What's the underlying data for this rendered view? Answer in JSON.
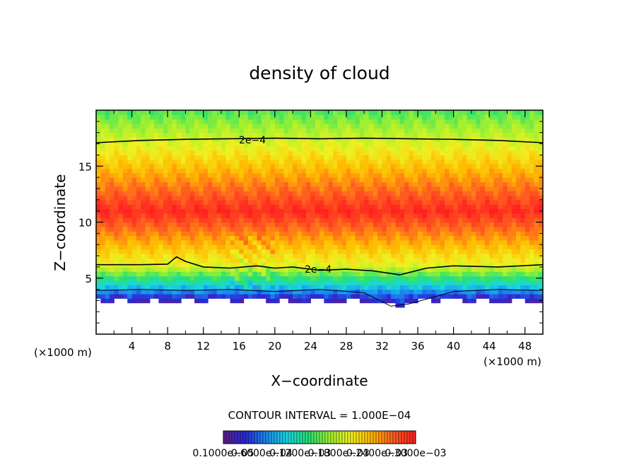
{
  "chart_data": {
    "type": "heatmap",
    "title": "density of cloud",
    "xlabel": "X−coordinate",
    "ylabel": "Z−coordinate",
    "x_unit": "(×1000 m)",
    "y_unit": "(×1000 m)",
    "xlim": [
      0,
      50
    ],
    "ylim": [
      0,
      20
    ],
    "x_ticks": [
      4,
      8,
      12,
      16,
      20,
      24,
      28,
      32,
      36,
      40,
      44,
      48
    ],
    "y_ticks": [
      5,
      10,
      15
    ],
    "colorscale": [
      "#5a1e8c",
      "#2a2ad8",
      "#1a8cf0",
      "#18d8e0",
      "#28e070",
      "#a0f030",
      "#f0f020",
      "#ffb800",
      "#ff6020",
      "#ff2020"
    ],
    "field_max": 0.00033,
    "contour_interval": "CONTOUR INTERVAL = 1.000E−04",
    "contour_labels": [
      {
        "text": "2e−4",
        "x": 16.3,
        "y": 17.3
      },
      {
        "text": "2e−4",
        "x": 24.1,
        "y": 5.8
      }
    ],
    "contours": [
      {
        "level": 0.0002,
        "points": [
          [
            0,
            17.1
          ],
          [
            5,
            17.3
          ],
          [
            10,
            17.4
          ],
          [
            15,
            17.45
          ],
          [
            20,
            17.5
          ],
          [
            25,
            17.45
          ],
          [
            30,
            17.5
          ],
          [
            35,
            17.45
          ],
          [
            40,
            17.4
          ],
          [
            45,
            17.3
          ],
          [
            50,
            17.1
          ]
        ]
      },
      {
        "level": 0.0002,
        "points": [
          [
            0,
            6.2
          ],
          [
            5,
            6.2
          ],
          [
            8,
            6.25
          ],
          [
            9,
            6.9
          ],
          [
            10,
            6.5
          ],
          [
            12,
            6.0
          ],
          [
            15,
            5.9
          ],
          [
            18,
            6.1
          ],
          [
            20,
            5.9
          ],
          [
            22,
            6.0
          ],
          [
            25,
            5.7
          ],
          [
            28,
            5.8
          ],
          [
            31,
            5.65
          ],
          [
            34,
            5.3
          ],
          [
            37,
            5.9
          ],
          [
            40,
            6.1
          ],
          [
            45,
            6.0
          ],
          [
            50,
            6.2
          ]
        ]
      },
      {
        "level": 0.0001,
        "points": [
          [
            0,
            3.9
          ],
          [
            5,
            4.0
          ],
          [
            10,
            3.9
          ],
          [
            15,
            4.0
          ],
          [
            20,
            3.8
          ],
          [
            25,
            4.0
          ],
          [
            30,
            3.7
          ],
          [
            33,
            2.5
          ],
          [
            35,
            2.7
          ],
          [
            40,
            3.8
          ],
          [
            45,
            4.0
          ],
          [
            50,
            3.9
          ]
        ]
      }
    ],
    "colorbar_labels": [
      "0.1000e−05",
      "0.6000e−04",
      "0.1200e−03",
      "0.1800e−03",
      "0.2400e−03",
      "0.3000e−03"
    ]
  }
}
